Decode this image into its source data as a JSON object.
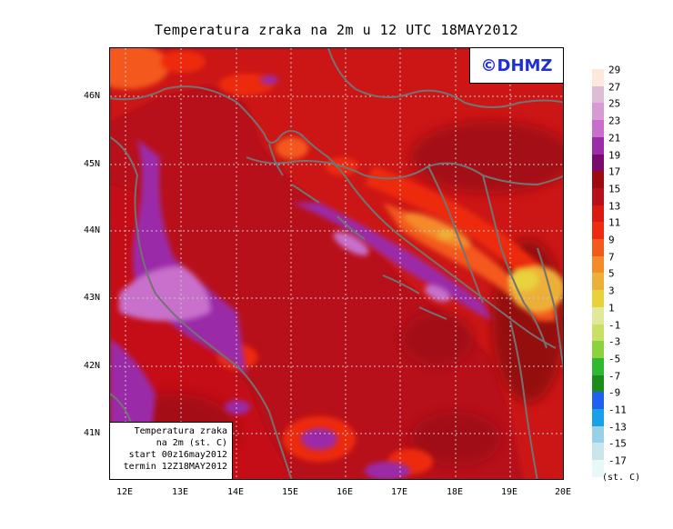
{
  "title": "Temperatura zraka na 2m u 12 UTC 18MAY2012",
  "logo": "©DHMZ",
  "info": {
    "line1": "Temperatura zraka",
    "line2": "na 2m (st. C)",
    "line3": "start 00z16may2012",
    "line4": "termin 12Z18MAY2012"
  },
  "lat_labels": [
    "46N",
    "45N",
    "44N",
    "43N",
    "42N",
    "41N"
  ],
  "lon_labels": [
    "12E",
    "13E",
    "14E",
    "15E",
    "16E",
    "17E",
    "18E",
    "19E",
    "20E"
  ],
  "colorbar": {
    "labels": [
      "29",
      "27",
      "25",
      "23",
      "21",
      "19",
      "17",
      "15",
      "13",
      "11",
      "9",
      "7",
      "5",
      "3",
      "1",
      "-1",
      "-3",
      "-5",
      "-7",
      "-9",
      "-11",
      "-13",
      "-15",
      "-17"
    ],
    "colors": [
      "#fde9dc",
      "#ddbcd6",
      "#d89ad4",
      "#c86fcc",
      "#9b2ca8",
      "#7a0a6e",
      "#9e0a12",
      "#b8101a",
      "#d81a10",
      "#ee2a10",
      "#f4581a",
      "#f48a2a",
      "#ecb038",
      "#e8d23c",
      "#e0e89a",
      "#c8e066",
      "#8cd23c",
      "#30b830",
      "#1c8c1c",
      "#2060f0",
      "#18a0e8",
      "#98d0e8",
      "#c8e6ec",
      "#e8f8f8"
    ],
    "unit": "(st. C)"
  },
  "colors": {
    "sea": "#9c0c12",
    "land": "#c41018",
    "coast": "#737373",
    "logo": "#1e2fd6"
  }
}
